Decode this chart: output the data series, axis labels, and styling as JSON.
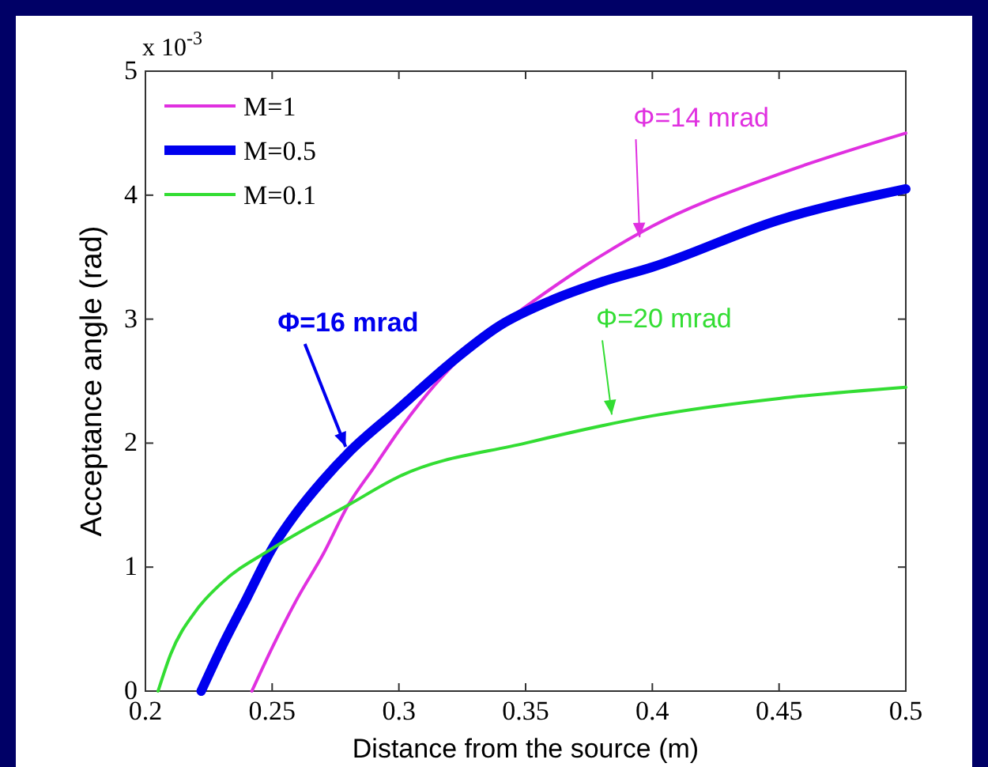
{
  "chart_data": {
    "type": "line",
    "xlabel": "Distance from the source (m)",
    "ylabel": "Acceptance angle (rad)",
    "xlim": [
      0.2,
      0.5
    ],
    "xticks": [
      0.2,
      0.25,
      0.3,
      0.35,
      0.4,
      0.45,
      0.5
    ],
    "ylim": [
      0,
      5
    ],
    "yticks": [
      0,
      1,
      2,
      3,
      4,
      5
    ],
    "legend": "top left",
    "grid": false,
    "series": [
      {
        "name": "M=1",
        "color": "#e030e0",
        "x": [
          0.242,
          0.25,
          0.26,
          0.27,
          0.28,
          0.29,
          0.3,
          0.32,
          0.34,
          0.35,
          0.375,
          0.4,
          0.45,
          0.5
        ],
        "values": [
          0,
          0.35,
          0.75,
          1.1,
          1.5,
          1.8,
          2.1,
          2.6,
          2.95,
          3.1,
          3.45,
          3.75,
          4.17,
          4.5
        ]
      },
      {
        "name": "M=0.5",
        "color": "#0000ee",
        "x": [
          0.222,
          0.23,
          0.24,
          0.25,
          0.26,
          0.27,
          0.28,
          0.3,
          0.32,
          0.34,
          0.36,
          0.38,
          0.4,
          0.45,
          0.5
        ],
        "values": [
          0,
          0.35,
          0.75,
          1.15,
          1.45,
          1.7,
          1.92,
          2.28,
          2.64,
          2.95,
          3.15,
          3.3,
          3.42,
          3.8,
          4.05
        ]
      },
      {
        "name": "M=0.1",
        "color": "#33dd33",
        "x": [
          0.205,
          0.21,
          0.22,
          0.23,
          0.25,
          0.28,
          0.3,
          0.35,
          0.4,
          0.45,
          0.5
        ],
        "values": [
          0,
          0.3,
          0.65,
          0.87,
          1.15,
          1.5,
          1.73,
          2.0,
          2.22,
          2.36,
          2.45
        ]
      }
    ],
    "annotations": [
      "x 10$^{-3}$",
      {
        "text": "Φ=14 mrad",
        "x": 0.395,
        "y": 3.66
      },
      {
        "text": "Φ=16 mrad",
        "x": 0.279,
        "y": 1.97
      },
      {
        "text": "Φ=20 mrad",
        "x": 0.384,
        "y": 2.23
      }
    ]
  }
}
